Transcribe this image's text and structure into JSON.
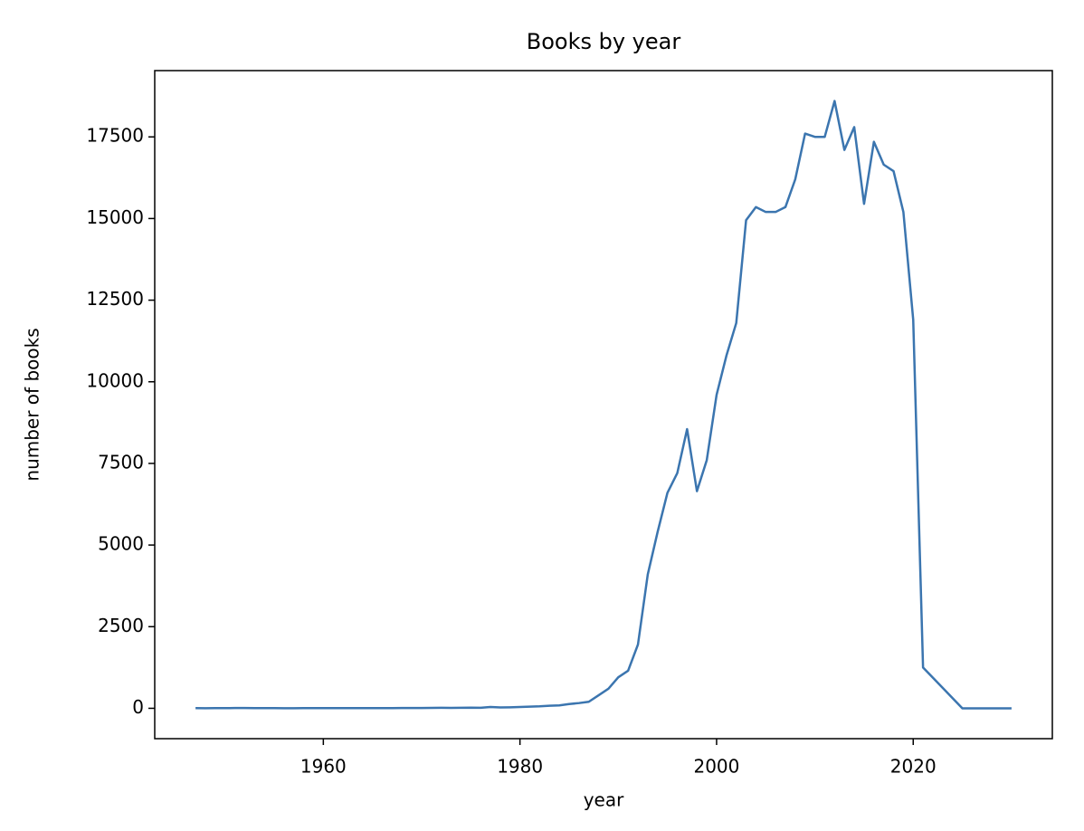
{
  "chart_data": {
    "type": "line",
    "title": "Books by year",
    "xlabel": "year",
    "ylabel": "number of books",
    "x": [
      1947,
      1948,
      1949,
      1950,
      1951,
      1952,
      1953,
      1954,
      1955,
      1956,
      1957,
      1958,
      1959,
      1960,
      1961,
      1962,
      1963,
      1964,
      1965,
      1966,
      1967,
      1968,
      1969,
      1970,
      1971,
      1972,
      1973,
      1974,
      1975,
      1976,
      1977,
      1978,
      1979,
      1980,
      1981,
      1982,
      1983,
      1984,
      1985,
      1986,
      1987,
      1988,
      1989,
      1990,
      1991,
      1992,
      1993,
      1994,
      1995,
      1996,
      1997,
      1998,
      1999,
      2000,
      2001,
      2002,
      2003,
      2004,
      2005,
      2006,
      2007,
      2008,
      2009,
      2010,
      2011,
      2012,
      2013,
      2014,
      2015,
      2016,
      2017,
      2018,
      2019,
      2020,
      2021,
      2025,
      2030
    ],
    "series": [
      {
        "name": "books",
        "color": "#3b75af",
        "values": [
          5,
          3,
          4,
          6,
          8,
          10,
          7,
          5,
          4,
          3,
          3,
          4,
          5,
          4,
          4,
          5,
          5,
          6,
          6,
          7,
          7,
          8,
          8,
          10,
          12,
          15,
          14,
          15,
          20,
          15,
          40,
          25,
          30,
          40,
          50,
          60,
          80,
          90,
          130,
          160,
          200,
          400,
          600,
          950,
          1150,
          1950,
          4100,
          5400,
          6600,
          7200,
          8550,
          6650,
          7600,
          9600,
          10800,
          11800,
          14950,
          15350,
          15200,
          15200,
          15350,
          16200,
          17600,
          17500,
          17500,
          18600,
          17100,
          17800,
          15450,
          17350,
          16650,
          16450,
          15200,
          11900,
          1250,
          0,
          0
        ]
      }
    ],
    "xlim": [
      1942.85,
      2034.15
    ],
    "ylim": [
      -930,
      19530
    ],
    "xticks": [
      1960,
      1980,
      2000,
      2020
    ],
    "yticks": [
      0,
      2500,
      5000,
      7500,
      10000,
      12500,
      15000,
      17500
    ]
  }
}
